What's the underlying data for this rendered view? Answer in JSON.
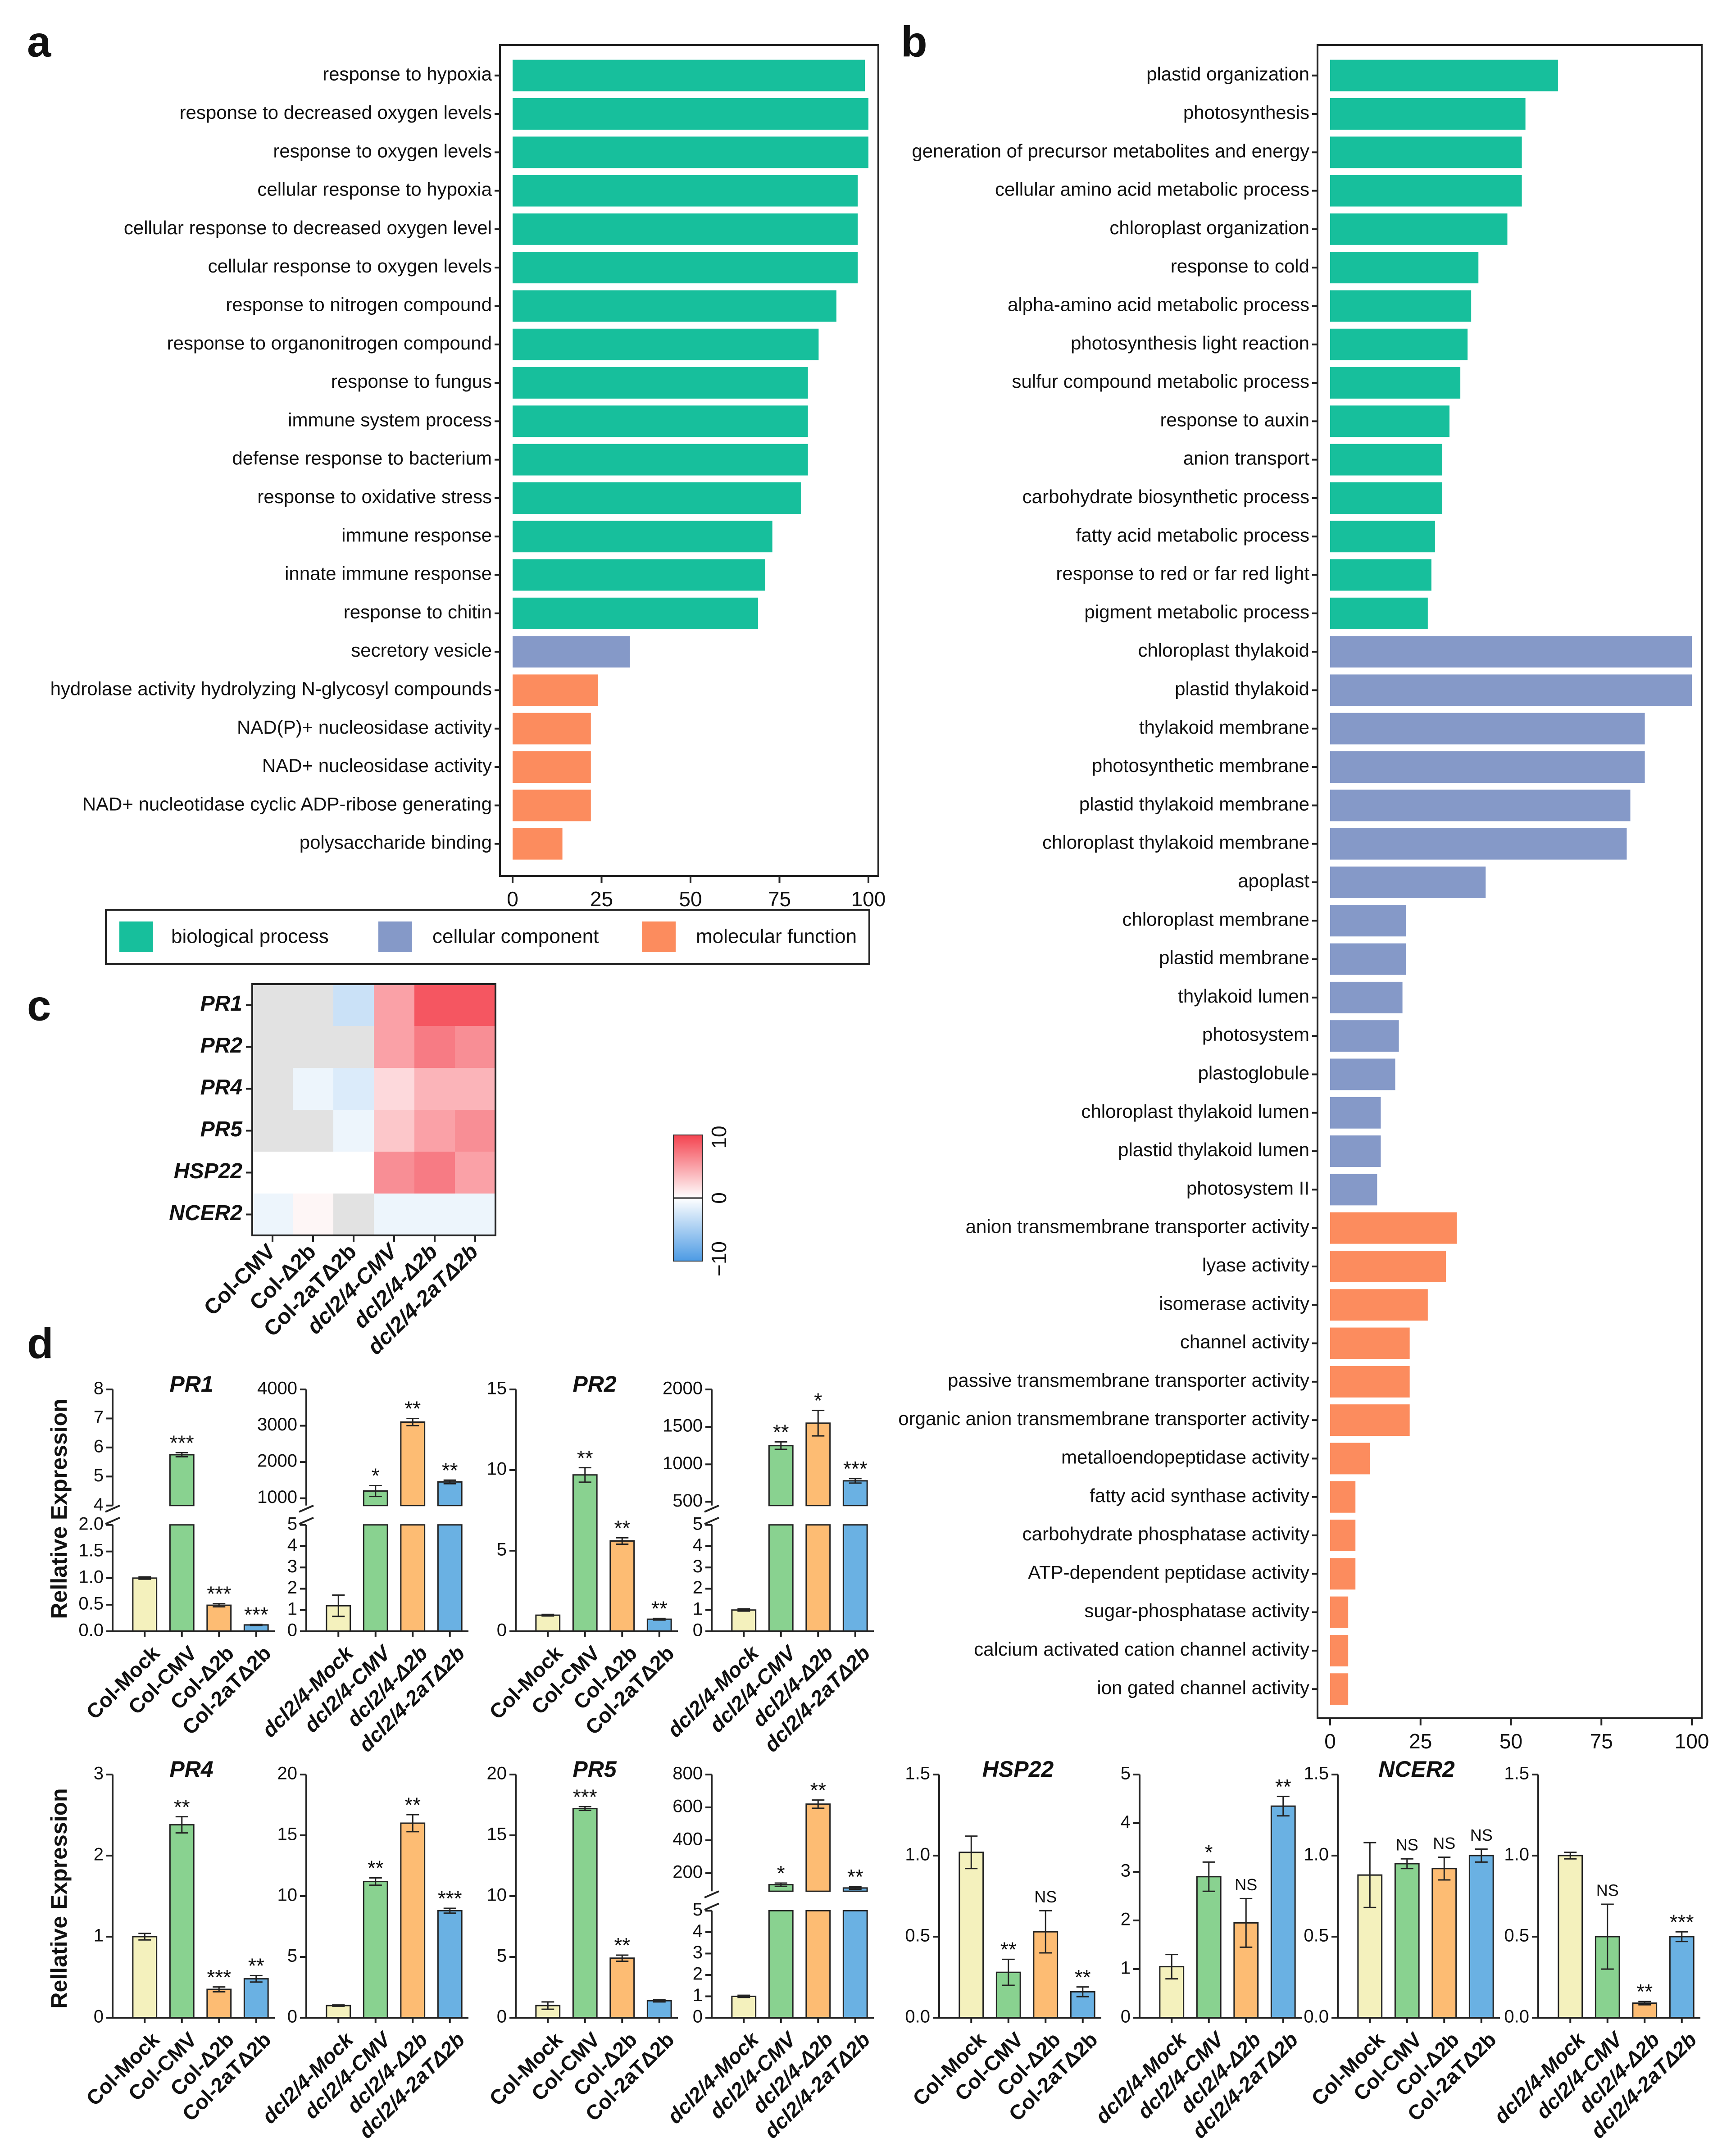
{
  "colors": {
    "bp": "#17bf9c",
    "cc": "#8599c8",
    "mf": "#fc8c5e",
    "mock": "#f4f1bd",
    "cmv": "#89d290",
    "d2b": "#fdbc73",
    "d2at": "#6ab1e3",
    "hm_low": "#4d9be4",
    "hm_mid": "#ffffff",
    "hm_high": "#f4434f",
    "hm_na": "#e2e2e2"
  },
  "panel_labels": [
    "a",
    "b",
    "c",
    "d"
  ],
  "chart_data": [
    {
      "panel": "a",
      "type": "bar",
      "orientation": "horizontal",
      "xlim": [
        0,
        100
      ],
      "xticks": [
        0,
        25,
        50,
        75,
        100
      ],
      "categories": [
        "response to hypoxia",
        "response to decreased oxygen levels",
        "response to oxygen levels",
        "cellular response to hypoxia",
        "cellular response to decreased oxygen level",
        "cellular response to oxygen levels",
        "response to nitrogen compound",
        "response to organonitrogen compound",
        "response to fungus",
        "immune system process",
        "defense response to bacterium",
        "response to oxidative stress",
        "immune response",
        "innate immune response",
        "response to chitin",
        "secretory vesicle",
        "hydrolase activity hydrolyzing N-glycosyl compounds",
        "NAD(P)+ nucleosidase activity",
        "NAD+ nucleosidase activity",
        "NAD+ nucleotidase cyclic ADP-ribose generating",
        "polysaccharide binding"
      ],
      "values": [
        99,
        100,
        100,
        97,
        97,
        97,
        91,
        86,
        83,
        83,
        83,
        81,
        73,
        71,
        69,
        33,
        24,
        22,
        22,
        22,
        14
      ],
      "groups": [
        "bp",
        "bp",
        "bp",
        "bp",
        "bp",
        "bp",
        "bp",
        "bp",
        "bp",
        "bp",
        "bp",
        "bp",
        "bp",
        "bp",
        "bp",
        "cc",
        "mf",
        "mf",
        "mf",
        "mf",
        "mf"
      ]
    },
    {
      "panel": "b",
      "type": "bar",
      "orientation": "horizontal",
      "xlim": [
        0,
        100
      ],
      "xticks": [
        0,
        25,
        50,
        75,
        100
      ],
      "categories": [
        "plastid organization",
        "photosynthesis",
        "generation of precursor metabolites and energy",
        "cellular amino acid metabolic process",
        "chloroplast organization",
        "response to cold",
        "alpha-amino acid metabolic process",
        "photosynthesis light reaction",
        "sulfur compound metabolic process",
        "response to auxin",
        "anion transport",
        "carbohydrate biosynthetic process",
        "fatty acid metabolic process",
        "response to red or far red light",
        "pigment metabolic process",
        "chloroplast thylakoid",
        "plastid thylakoid",
        "thylakoid membrane",
        "photosynthetic membrane",
        "plastid thylakoid membrane",
        "chloroplast thylakoid membrane",
        "apoplast",
        "chloroplast membrane",
        "plastid membrane",
        "thylakoid lumen",
        "photosystem",
        "plastoglobule",
        "chloroplast thylakoid lumen",
        "plastid thylakoid lumen",
        "photosystem II",
        "anion transmembrane transporter activity",
        "lyase activity",
        "isomerase activity",
        "channel activity",
        "passive transmembrane transporter activity",
        "organic anion transmembrane transporter activity",
        "metalloendopeptidase activity",
        "fatty acid synthase activity",
        "carbohydrate phosphatase activity",
        "ATP-dependent peptidase activity",
        "sugar-phosphatase activity",
        "calcium activated cation channel activity",
        "ion gated channel activity"
      ],
      "values": [
        63,
        54,
        53,
        53,
        49,
        41,
        39,
        38,
        36,
        33,
        31,
        31,
        29,
        28,
        27,
        100,
        100,
        87,
        87,
        83,
        82,
        43,
        21,
        21,
        20,
        19,
        18,
        14,
        14,
        13,
        35,
        32,
        27,
        22,
        22,
        22,
        11,
        7,
        7,
        7,
        5,
        5,
        5
      ],
      "groups": [
        "bp",
        "bp",
        "bp",
        "bp",
        "bp",
        "bp",
        "bp",
        "bp",
        "bp",
        "bp",
        "bp",
        "bp",
        "bp",
        "bp",
        "bp",
        "cc",
        "cc",
        "cc",
        "cc",
        "cc",
        "cc",
        "cc",
        "cc",
        "cc",
        "cc",
        "cc",
        "cc",
        "cc",
        "cc",
        "cc",
        "mf",
        "mf",
        "mf",
        "mf",
        "mf",
        "mf",
        "mf",
        "mf",
        "mf",
        "mf",
        "mf",
        "mf",
        "mf"
      ]
    },
    {
      "panel": "c",
      "type": "heatmap",
      "rows": [
        "PR1",
        "PR2",
        "PR4",
        "PR5",
        "HSP22",
        "NCER2"
      ],
      "cols": [
        "Col-CMV",
        "Col-Δ2b",
        "Col-2aTΔ2b",
        "dcl2/4-CMV",
        "dcl2/4-Δ2b",
        "dcl2/4-2aTΔ2b"
      ],
      "values": [
        [
          null,
          null,
          -3,
          5,
          9,
          9
        ],
        [
          null,
          null,
          null,
          5,
          7,
          6
        ],
        [
          null,
          -1,
          -2,
          2,
          4,
          4
        ],
        [
          null,
          null,
          -1,
          3,
          5,
          6
        ],
        [
          0,
          0,
          0,
          6,
          7,
          5
        ],
        [
          -1,
          0.5,
          null,
          -1,
          -1,
          -1
        ]
      ],
      "colorbar": {
        "min": -10,
        "max": 10,
        "ticks": [
          "10",
          "0",
          "−10"
        ]
      }
    },
    {
      "panel": "d",
      "type": "bar",
      "subtype": "bar-with-error",
      "ylabel": "Rellative Expression",
      "charts": [
        {
          "title": "PR1",
          "categories": [
            "Col-Mock",
            "Col-CMV",
            "Col-Δ2b",
            "Col-2aTΔ2b"
          ],
          "values": [
            1.0,
            5.75,
            0.49,
            0.12
          ],
          "errors": [
            0.02,
            0.07,
            0.03,
            0.01
          ],
          "sig": [
            "",
            "***",
            "***",
            "***"
          ],
          "colors": [
            "mock",
            "cmv",
            "d2b",
            "d2at"
          ],
          "axis_break": {
            "lower": [
              0,
              2.0
            ],
            "upper": [
              4,
              8
            ],
            "lower_ticks": [
              "0.0",
              "0.5",
              "1.0",
              "1.5",
              "2.0"
            ],
            "lower_tick_values": [
              0,
              0.5,
              1.0,
              1.5,
              2.0
            ],
            "upper_ticks": [
              "4",
              "5",
              "6",
              "7",
              "8"
            ],
            "upper_tick_values": [
              4,
              5,
              6,
              7,
              8
            ]
          }
        },
        {
          "title": "",
          "categories": [
            "dcl2/4-Mock",
            "dcl2/4-CMV",
            "dcl2/4-Δ2b",
            "dcl2/4-2aTΔ2b"
          ],
          "values": [
            1.2,
            1200,
            3100,
            1450
          ],
          "errors": [
            0.5,
            150,
            100,
            50
          ],
          "sig": [
            "",
            "*",
            "**",
            "**"
          ],
          "colors": [
            "mock",
            "cmv",
            "d2b",
            "d2at"
          ],
          "axis_break": {
            "lower": [
              0,
              5
            ],
            "upper": [
              800,
              4000
            ],
            "lower_ticks": [
              "0",
              "1",
              "2",
              "3",
              "4",
              "5"
            ],
            "lower_tick_values": [
              0,
              1,
              2,
              3,
              4,
              5
            ],
            "upper_ticks": [
              "1000",
              "2000",
              "3000",
              "4000"
            ],
            "upper_tick_values": [
              1000,
              2000,
              3000,
              4000
            ]
          }
        },
        {
          "title": "PR2",
          "categories": [
            "Col-Mock",
            "Col-CMV",
            "Col-Δ2b",
            "Col-2aTΔ2b"
          ],
          "values": [
            1.0,
            9.7,
            5.6,
            0.75
          ],
          "errors": [
            0.05,
            0.45,
            0.2,
            0.05
          ],
          "sig": [
            "",
            "**",
            "**",
            "**"
          ],
          "colors": [
            "mock",
            "cmv",
            "d2b",
            "d2at"
          ],
          "ylim": [
            0,
            15
          ],
          "ticks": [
            "0",
            "5",
            "10",
            "15"
          ],
          "tick_values": [
            0,
            5,
            10,
            15
          ]
        },
        {
          "title": "",
          "categories": [
            "dcl2/4-Mock",
            "dcl2/4-CMV",
            "dcl2/4-Δ2b",
            "dcl2/4-2aTΔ2b"
          ],
          "values": [
            1.0,
            1250,
            1550,
            780
          ],
          "errors": [
            0.05,
            50,
            170,
            30
          ],
          "sig": [
            "",
            "**",
            "*",
            "***"
          ],
          "colors": [
            "mock",
            "cmv",
            "d2b",
            "d2at"
          ],
          "axis_break": {
            "lower": [
              0,
              5
            ],
            "upper": [
              450,
              2000
            ],
            "lower_ticks": [
              "0",
              "1",
              "2",
              "3",
              "4",
              "5"
            ],
            "lower_tick_values": [
              0,
              1,
              2,
              3,
              4,
              5
            ],
            "upper_ticks": [
              "500",
              "1000",
              "1500",
              "2000"
            ],
            "upper_tick_values": [
              500,
              1000,
              1500,
              2000
            ]
          }
        },
        {
          "title": "PR4",
          "categories": [
            "Col-Mock",
            "Col-CMV",
            "Col-Δ2b",
            "Col-2aTΔ2b"
          ],
          "values": [
            1.0,
            2.38,
            0.35,
            0.48
          ],
          "errors": [
            0.04,
            0.1,
            0.03,
            0.04
          ],
          "sig": [
            "",
            "**",
            "***",
            "**"
          ],
          "colors": [
            "mock",
            "cmv",
            "d2b",
            "d2at"
          ],
          "ylim": [
            0,
            3
          ],
          "ticks": [
            "0",
            "1",
            "2",
            "3"
          ],
          "tick_values": [
            0,
            1,
            2,
            3
          ]
        },
        {
          "title": "",
          "categories": [
            "dcl2/4-Mock",
            "dcl2/4-CMV",
            "dcl2/4-Δ2b",
            "dcl2/4-2aTΔ2b"
          ],
          "values": [
            1.0,
            11.2,
            16.0,
            8.8
          ],
          "errors": [
            0.05,
            0.3,
            0.7,
            0.2
          ],
          "sig": [
            "",
            "**",
            "**",
            "***"
          ],
          "colors": [
            "mock",
            "cmv",
            "d2b",
            "d2at"
          ],
          "ylim": [
            0,
            20
          ],
          "ticks": [
            "0",
            "5",
            "10",
            "15",
            "20"
          ],
          "tick_values": [
            0,
            5,
            10,
            15,
            20
          ]
        },
        {
          "title": "PR5",
          "categories": [
            "Col-Mock",
            "Col-CMV",
            "Col-Δ2b",
            "Col-2aTΔ2b"
          ],
          "values": [
            1.0,
            17.2,
            4.9,
            1.4
          ],
          "errors": [
            0.3,
            0.15,
            0.25,
            0.1
          ],
          "sig": [
            "",
            "***",
            "**",
            ""
          ],
          "colors": [
            "mock",
            "cmv",
            "d2b",
            "d2at"
          ],
          "ylim": [
            0,
            20
          ],
          "ticks": [
            "0",
            "5",
            "10",
            "15",
            "20"
          ],
          "tick_values": [
            0,
            5,
            10,
            15,
            20
          ]
        },
        {
          "title": "",
          "categories": [
            "dcl2/4-Mock",
            "dcl2/4-CMV",
            "dcl2/4-Δ2b",
            "dcl2/4-2aTΔ2b"
          ],
          "values": [
            1.0,
            130,
            620,
            110
          ],
          "errors": [
            0.05,
            10,
            25,
            8
          ],
          "sig": [
            "",
            "*",
            "**",
            "**"
          ],
          "colors": [
            "mock",
            "cmv",
            "d2b",
            "d2at"
          ],
          "axis_break": {
            "lower": [
              0,
              5
            ],
            "upper": [
              90,
              800
            ],
            "lower_ticks": [
              "0",
              "1",
              "2",
              "3",
              "4",
              "5"
            ],
            "lower_tick_values": [
              0,
              1,
              2,
              3,
              4,
              5
            ],
            "upper_ticks": [
              "200",
              "400",
              "600",
              "800"
            ],
            "upper_tick_values": [
              200,
              400,
              600,
              800
            ]
          }
        },
        {
          "title": "HSP22",
          "categories": [
            "Col-Mock",
            "Col-CMV",
            "Col-Δ2b",
            "Col-2aTΔ2b"
          ],
          "values": [
            1.02,
            0.28,
            0.53,
            0.16
          ],
          "errors": [
            0.1,
            0.08,
            0.13,
            0.03
          ],
          "sig": [
            "",
            "**",
            "NS",
            "**"
          ],
          "colors": [
            "mock",
            "cmv",
            "d2b",
            "d2at"
          ],
          "ylim": [
            0,
            1.5
          ],
          "ticks": [
            "0.0",
            "0.5",
            "1.0",
            "1.5"
          ],
          "tick_values": [
            0,
            0.5,
            1.0,
            1.5
          ]
        },
        {
          "title": "",
          "categories": [
            "dcl2/4-Mock",
            "dcl2/4-CMV",
            "dcl2/4-Δ2b",
            "dcl2/4-2aTΔ2b"
          ],
          "values": [
            1.05,
            2.9,
            1.95,
            4.35
          ],
          "errors": [
            0.25,
            0.3,
            0.5,
            0.2
          ],
          "sig": [
            "",
            "*",
            "NS",
            "**"
          ],
          "colors": [
            "mock",
            "cmv",
            "d2b",
            "d2at"
          ],
          "ylim": [
            0,
            5
          ],
          "ticks": [
            "0",
            "1",
            "2",
            "3",
            "4",
            "5"
          ],
          "tick_values": [
            0,
            1,
            2,
            3,
            4,
            5
          ]
        },
        {
          "title": "NCER2",
          "categories": [
            "Col-Mock",
            "Col-CMV",
            "Col-Δ2b",
            "Col-2aTΔ2b"
          ],
          "values": [
            0.88,
            0.95,
            0.92,
            1.0
          ],
          "errors": [
            0.2,
            0.03,
            0.07,
            0.04
          ],
          "sig": [
            "",
            "NS",
            "NS",
            "NS"
          ],
          "colors": [
            "mock",
            "cmv",
            "d2b",
            "d2at"
          ],
          "ylim": [
            0,
            1.5
          ],
          "ticks": [
            "0.0",
            "0.5",
            "1.0",
            "1.5"
          ],
          "tick_values": [
            0,
            0.5,
            1.0,
            1.5
          ]
        },
        {
          "title": "",
          "categories": [
            "dcl2/4-Mock",
            "dcl2/4-CMV",
            "dcl2/4-Δ2b",
            "dcl2/4-2aTΔ2b"
          ],
          "values": [
            1.0,
            0.5,
            0.09,
            0.5
          ],
          "errors": [
            0.02,
            0.2,
            0.01,
            0.03
          ],
          "sig": [
            "",
            "NS",
            "**",
            "***"
          ],
          "colors": [
            "mock",
            "cmv",
            "d2b",
            "d2at"
          ],
          "ylim": [
            0,
            1.5
          ],
          "ticks": [
            "0.0",
            "0.5",
            "1.0",
            "1.5"
          ],
          "tick_values": [
            0,
            0.5,
            1.0,
            1.5
          ]
        }
      ]
    }
  ],
  "legend": {
    "items": [
      {
        "label": "biological process",
        "color": "bp"
      },
      {
        "label": "cellular component",
        "color": "cc"
      },
      {
        "label": "molecular function",
        "color": "mf"
      }
    ]
  }
}
